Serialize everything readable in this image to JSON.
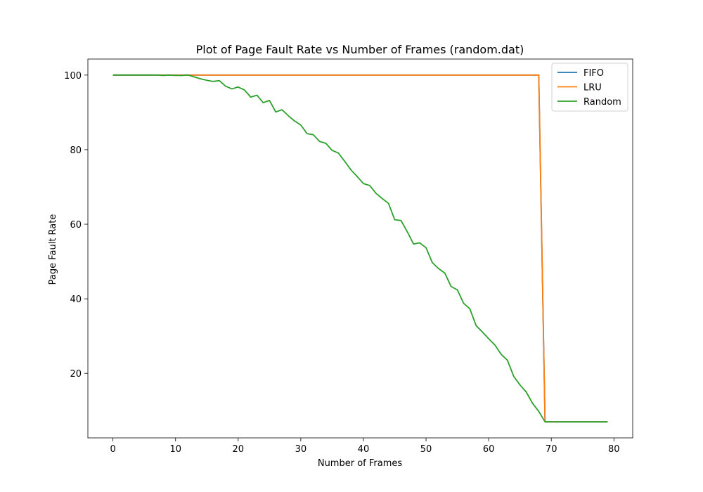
{
  "chart_data": {
    "type": "line",
    "title": "Plot of Page Fault Rate vs Number of Frames (random.dat)",
    "xlabel": "Number of Frames",
    "ylabel": "Page Fault Rate",
    "xlim": [
      -4,
      83
    ],
    "ylim": [
      2.7,
      104.3
    ],
    "xticks": [
      0,
      10,
      20,
      30,
      40,
      50,
      60,
      70,
      80
    ],
    "yticks": [
      20,
      40,
      60,
      80,
      100
    ],
    "grid": false,
    "legend": "top-right",
    "x": [
      0,
      1,
      2,
      3,
      4,
      5,
      6,
      7,
      8,
      9,
      10,
      11,
      12,
      13,
      14,
      15,
      16,
      17,
      18,
      19,
      20,
      21,
      22,
      23,
      24,
      25,
      26,
      27,
      28,
      29,
      30,
      31,
      32,
      33,
      34,
      35,
      36,
      37,
      38,
      39,
      40,
      41,
      42,
      43,
      44,
      45,
      46,
      47,
      48,
      49,
      50,
      51,
      52,
      53,
      54,
      55,
      56,
      57,
      58,
      59,
      60,
      61,
      62,
      63,
      64,
      65,
      66,
      67,
      68,
      69,
      70,
      71,
      72,
      73,
      74,
      75,
      76,
      77,
      78,
      79
    ],
    "series": [
      {
        "name": "FIFO",
        "color": "#1f77b4",
        "values": [
          100,
          100,
          100,
          100,
          100,
          100,
          100,
          100,
          100,
          100,
          100,
          100,
          100,
          100,
          100,
          100,
          100,
          100,
          100,
          100,
          100,
          100,
          100,
          100,
          100,
          100,
          100,
          100,
          100,
          100,
          100,
          100,
          100,
          100,
          100,
          100,
          100,
          100,
          100,
          100,
          100,
          100,
          100,
          100,
          100,
          100,
          100,
          100,
          100,
          100,
          100,
          100,
          100,
          100,
          100,
          100,
          100,
          100,
          100,
          100,
          100,
          100,
          100,
          100,
          100,
          100,
          100,
          100,
          100,
          7,
          7,
          7,
          7,
          7,
          7,
          7,
          7,
          7,
          7,
          7
        ]
      },
      {
        "name": "LRU",
        "color": "#ff7f0e",
        "values": [
          100,
          100,
          100,
          100,
          100,
          100,
          100,
          100,
          100,
          100,
          100,
          100,
          100,
          100,
          100,
          100,
          100,
          100,
          100,
          100,
          100,
          100,
          100,
          100,
          100,
          100,
          100,
          100,
          100,
          100,
          100,
          100,
          100,
          100,
          100,
          100,
          100,
          100,
          100,
          100,
          100,
          100,
          100,
          100,
          100,
          100,
          100,
          100,
          100,
          100,
          100,
          100,
          100,
          100,
          100,
          100,
          100,
          100,
          100,
          100,
          100,
          100,
          100,
          100,
          100,
          100,
          100,
          100,
          100,
          7,
          7,
          7,
          7,
          7,
          7,
          7,
          7,
          7,
          7,
          7
        ]
      },
      {
        "name": "Random",
        "color": "#2ca02c",
        "values": [
          100,
          100,
          100,
          100,
          100,
          100,
          100,
          100,
          99.9,
          100,
          99.9,
          99.9,
          100,
          99.5,
          99,
          98.6,
          98.3,
          98.5,
          97,
          96.3,
          96.8,
          96,
          94.1,
          94.6,
          92.6,
          93.2,
          90.1,
          90.7,
          89.1,
          87.7,
          86.6,
          84.3,
          84,
          82.2,
          81.7,
          79.8,
          79.1,
          76.9,
          74.6,
          72.8,
          70.9,
          70.4,
          68.3,
          66.9,
          65.6,
          61.2,
          61,
          58,
          54.7,
          55,
          53.7,
          49.7,
          48.1,
          46.9,
          43.3,
          42.4,
          38.8,
          37.3,
          32.8,
          31.1,
          29.3,
          27.6,
          25.1,
          23.5,
          19.2,
          16.9,
          15,
          12,
          9.8,
          7,
          7,
          7,
          7,
          7,
          7,
          7,
          7,
          7,
          7,
          7
        ]
      }
    ]
  }
}
